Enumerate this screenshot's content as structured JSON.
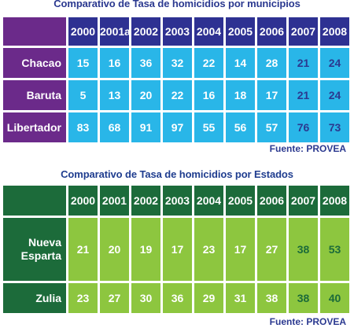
{
  "chart_data": [
    {
      "type": "table",
      "title": "Comparativo de Tasa de homicidios por municipios",
      "columns": [
        "2000",
        "2001a",
        "2002",
        "2003",
        "2004",
        "2005",
        "2006",
        "2007",
        "2008"
      ],
      "rows": [
        {
          "label": "Chacao",
          "values": [
            "15",
            "16",
            "36",
            "32",
            "22",
            "14",
            "28",
            "21",
            "24"
          ]
        },
        {
          "label": "Baruta",
          "values": [
            "5",
            "13",
            "20",
            "22",
            "16",
            "18",
            "17",
            "21",
            "24"
          ]
        },
        {
          "label": "Libertador",
          "values": [
            "83",
            "68",
            "91",
            "97",
            "55",
            "56",
            "57",
            "76",
            "73"
          ]
        }
      ],
      "highlight_columns": [
        7,
        8
      ],
      "source": "Fuente: PROVEA",
      "colors": {
        "header": "#2e3192",
        "label": "#6b2a8a",
        "cell": "#29b6e8",
        "highlight_text": "#2b3990"
      }
    },
    {
      "type": "table",
      "title": "Comparativo de Tasa de homicidios por Estados",
      "columns": [
        "2000",
        "2001",
        "2002",
        "2003",
        "2004",
        "2005",
        "2006",
        "2007",
        "2008"
      ],
      "rows": [
        {
          "label": "Nueva Esparta",
          "values": [
            "21",
            "20",
            "19",
            "17",
            "23",
            "17",
            "27",
            "38",
            "53"
          ]
        },
        {
          "label": "Zulia",
          "values": [
            "23",
            "27",
            "30",
            "36",
            "29",
            "31",
            "38",
            "38",
            "40"
          ]
        }
      ],
      "highlight_columns": [
        7,
        8
      ],
      "source": "Fuente: PROVEA",
      "colors": {
        "header": "#1c6b3a",
        "label": "#1c6b3a",
        "cell": "#8dc63f",
        "highlight_text": "#1c6b3a"
      }
    }
  ]
}
